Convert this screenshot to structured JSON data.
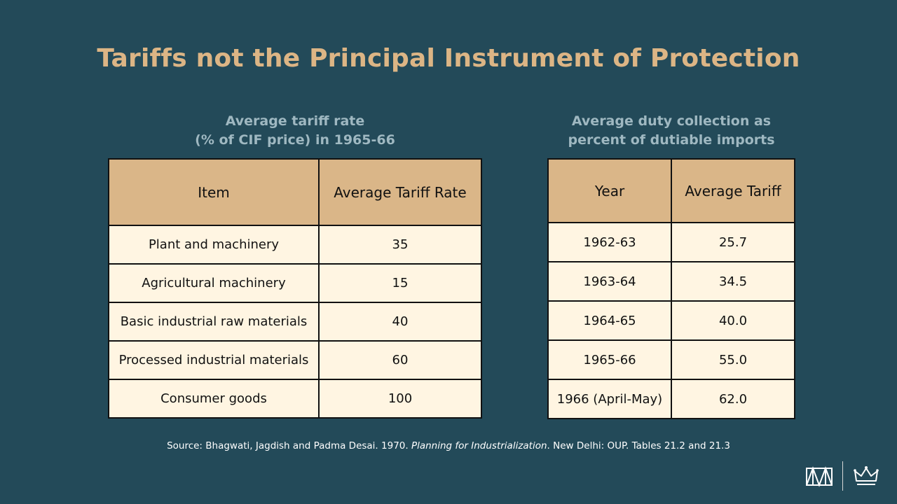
{
  "title": "Tariffs not the Principal Instrument of Protection",
  "left_table": {
    "caption_lines": [
      "Average tariff rate",
      "(% of CIF price) in 1965-66"
    ],
    "headers": [
      "Item",
      "Average Tariff Rate"
    ],
    "rows": [
      [
        "Plant and machinery",
        "35"
      ],
      [
        "Agricultural machinery",
        "15"
      ],
      [
        "Basic industrial raw materials",
        "40"
      ],
      [
        "Processed industrial materials",
        "60"
      ],
      [
        "Consumer goods",
        "100"
      ]
    ]
  },
  "right_table": {
    "caption_lines": [
      "Average duty collection as",
      "percent of dutiable imports"
    ],
    "headers": [
      "Year",
      "Average Tariff"
    ],
    "rows": [
      [
        "1962-63",
        "25.7"
      ],
      [
        "1963-64",
        "34.5"
      ],
      [
        "1964-65",
        "40.0"
      ],
      [
        "1965-66",
        "55.0"
      ],
      [
        "1966 (April-May)",
        "62.0"
      ]
    ]
  },
  "source": {
    "prefix": "Source: Bhagwati, Jagdish and Padma Desai. 1970. ",
    "book_title": "Planning for Industrialization",
    "suffix": ". New Delhi: OUP. Tables 21.2 and 21.3"
  },
  "logos": {
    "left_icon": "institution-monogram-icon",
    "right_icon": "crown-icon",
    "color": "#ffffff"
  },
  "colors": {
    "background": "#234a59",
    "title": "#dcb585",
    "caption": "#9fb8c1",
    "header_fill": "#dab688",
    "cell_fill": "#fff5e2"
  }
}
